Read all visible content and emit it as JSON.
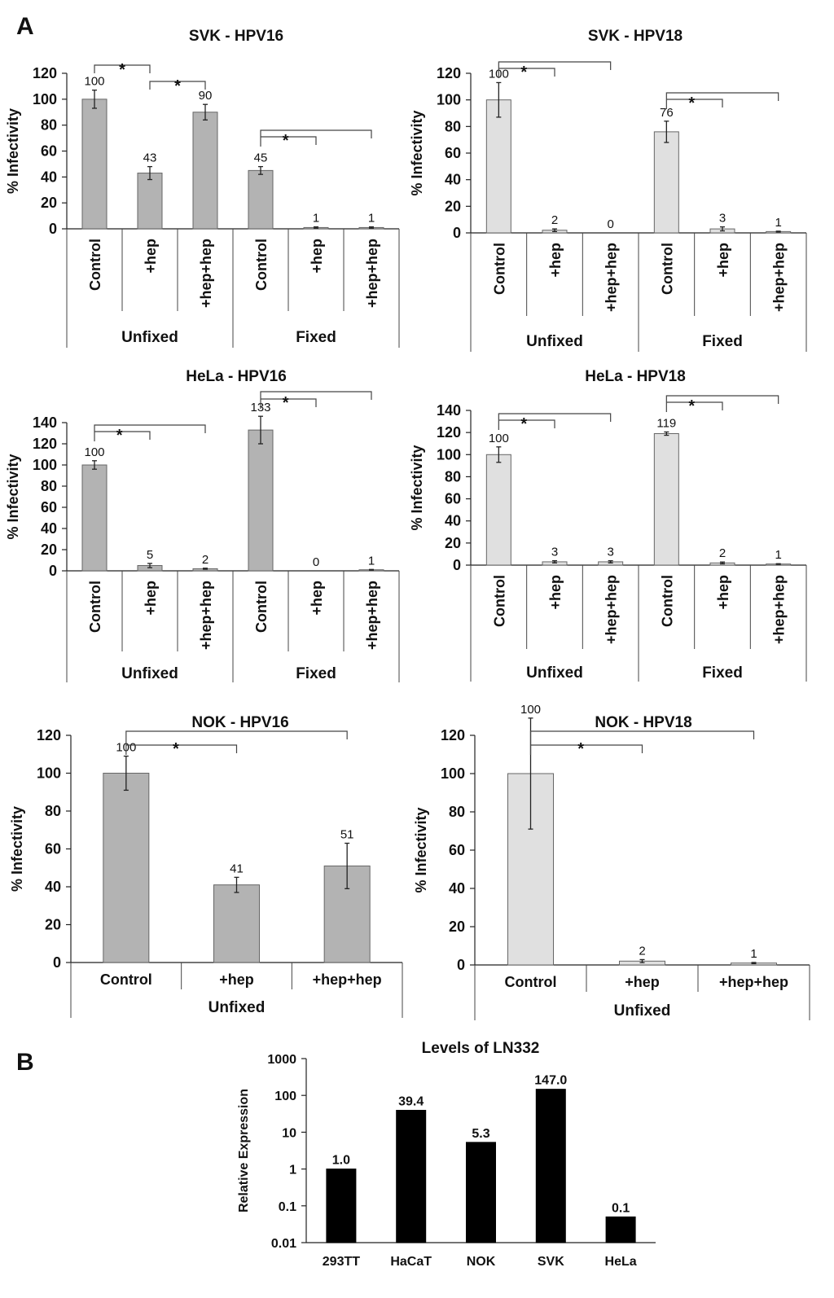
{
  "figure": {
    "panel_labels": [
      "A",
      "B"
    ]
  },
  "chart_data": [
    {
      "type": "bar",
      "title": "SVK - HPV16",
      "ylabel": "% Infectivity",
      "ylim": [
        0,
        120
      ],
      "yticks": [
        0,
        20,
        40,
        60,
        80,
        100,
        120
      ],
      "categories": [
        "Control",
        "+hep",
        "+hep+hep",
        "Control",
        "+hep",
        "+hep+hep"
      ],
      "groups": [
        {
          "label": "Unfixed",
          "count": 3
        },
        {
          "label": "Fixed",
          "count": 3
        }
      ],
      "values": [
        100,
        43,
        90,
        45,
        1,
        1
      ],
      "errors": [
        7,
        5,
        6,
        3,
        0.5,
        0.5
      ],
      "value_labels": [
        "100",
        "43",
        "90",
        "45",
        "1",
        "1"
      ],
      "bar_color": "#b3b3b3",
      "significance": "*"
    },
    {
      "type": "bar",
      "title": "SVK - HPV18",
      "ylabel": "% Infectivity",
      "ylim": [
        0,
        120
      ],
      "yticks": [
        0,
        20,
        40,
        60,
        80,
        100,
        120
      ],
      "categories": [
        "Control",
        "+hep",
        "+hep+hep",
        "Control",
        "+hep",
        "+hep+hep"
      ],
      "groups": [
        {
          "label": "Unfixed",
          "count": 3
        },
        {
          "label": "Fixed",
          "count": 3
        }
      ],
      "values": [
        100,
        2,
        0,
        76,
        3,
        1
      ],
      "errors": [
        13,
        1,
        0,
        8,
        1.5,
        0.3
      ],
      "value_labels": [
        "100",
        "2",
        "0",
        "76",
        "3",
        "1"
      ],
      "bar_color": "#e0e0e0",
      "significance": "*"
    },
    {
      "type": "bar",
      "title": "HeLa - HPV16",
      "ylabel": "% Infectivity",
      "ylim": [
        0,
        140
      ],
      "yticks": [
        0,
        20,
        40,
        60,
        80,
        100,
        120,
        140
      ],
      "categories": [
        "Control",
        "+hep",
        "+hep+hep",
        "Control",
        "+hep",
        "+hep+hep"
      ],
      "groups": [
        {
          "label": "Unfixed",
          "count": 3
        },
        {
          "label": "Fixed",
          "count": 3
        }
      ],
      "values": [
        100,
        5,
        2,
        133,
        0,
        1
      ],
      "errors": [
        4,
        2,
        0.5,
        13,
        0,
        0.3
      ],
      "value_labels": [
        "100",
        "5",
        "2",
        "133",
        "0",
        "1"
      ],
      "bar_color": "#b3b3b3",
      "significance": "*"
    },
    {
      "type": "bar",
      "title": "HeLa - HPV18",
      "ylabel": "% Infectivity",
      "ylim": [
        0,
        140
      ],
      "yticks": [
        0,
        20,
        40,
        60,
        80,
        100,
        120,
        140
      ],
      "categories": [
        "Control",
        "+hep",
        "+hep+hep",
        "Control",
        "+hep",
        "+hep+hep"
      ],
      "groups": [
        {
          "label": "Unfixed",
          "count": 3
        },
        {
          "label": "Fixed",
          "count": 3
        }
      ],
      "values": [
        100,
        3,
        3,
        119,
        2,
        1
      ],
      "errors": [
        7,
        1,
        1,
        1.5,
        0.8,
        0.3
      ],
      "value_labels": [
        "100",
        "3",
        "3",
        "119",
        "2",
        "1"
      ],
      "bar_color": "#e0e0e0",
      "significance": "*"
    },
    {
      "type": "bar",
      "title": "NOK - HPV16",
      "ylabel": "% Infectivity",
      "ylim": [
        0,
        120
      ],
      "yticks": [
        0,
        20,
        40,
        60,
        80,
        100,
        120
      ],
      "categories": [
        "Control",
        "+hep",
        "+hep+hep"
      ],
      "groups": [
        {
          "label": "Unfixed",
          "count": 3
        }
      ],
      "values": [
        100,
        41,
        51
      ],
      "errors": [
        9,
        4,
        12
      ],
      "value_labels": [
        "100",
        "41",
        "51"
      ],
      "bar_color": "#b3b3b3",
      "significance": "*"
    },
    {
      "type": "bar",
      "title": "NOK - HPV18",
      "ylabel": "% Infectivity",
      "ylim": [
        0,
        120
      ],
      "yticks": [
        0,
        20,
        40,
        60,
        80,
        100,
        120
      ],
      "categories": [
        "Control",
        "+hep",
        "+hep+hep"
      ],
      "groups": [
        {
          "label": "Unfixed",
          "count": 3
        }
      ],
      "values": [
        100,
        2,
        1
      ],
      "errors": [
        29,
        0.8,
        0.3
      ],
      "value_labels": [
        "100",
        "2",
        "1"
      ],
      "bar_color": "#e0e0e0",
      "significance": "*"
    },
    {
      "type": "bar",
      "title": "Levels of LN332",
      "ylabel": "Relative Expression",
      "yscale": "log",
      "ylim": [
        0.01,
        1000
      ],
      "yticks": [
        0.01,
        0.1,
        1,
        10,
        100,
        1000
      ],
      "ytick_labels": [
        "0.01",
        "0.1",
        "1",
        "10",
        "100",
        "1000"
      ],
      "categories": [
        "293TT",
        "HaCaT",
        "NOK",
        "SVK",
        "HeLa"
      ],
      "values": [
        1.0,
        39.4,
        5.3,
        147.0,
        0.05
      ],
      "value_labels": [
        "1.0",
        "39.4",
        "5.3",
        "147.0",
        "0.1"
      ],
      "bar_color": "#000000"
    }
  ]
}
